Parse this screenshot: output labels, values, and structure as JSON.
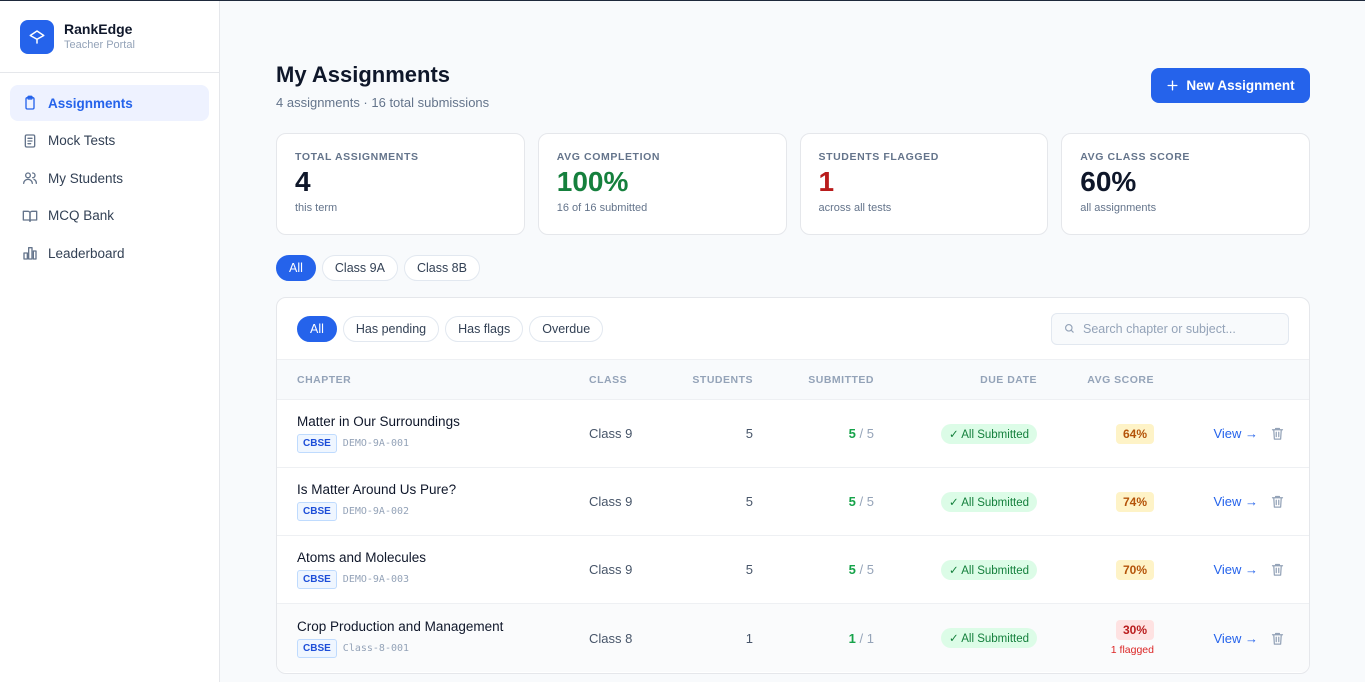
{
  "brand": {
    "name": "RankEdge",
    "subtitle": "Teacher Portal"
  },
  "sidebar": {
    "items": [
      {
        "label": "Assignments",
        "icon": "clipboard-icon",
        "active": true
      },
      {
        "label": "Mock Tests",
        "icon": "checklist-icon",
        "active": false
      },
      {
        "label": "My Students",
        "icon": "users-icon",
        "active": false
      },
      {
        "label": "MCQ Bank",
        "icon": "book-icon",
        "active": false
      },
      {
        "label": "Leaderboard",
        "icon": "bar-chart-icon",
        "active": false
      }
    ]
  },
  "header": {
    "title": "My Assignments",
    "subtitle": "4 assignments · 16 total submissions",
    "new_button": "New Assignment"
  },
  "stats": [
    {
      "label": "TOTAL ASSIGNMENTS",
      "value": "4",
      "note": "this term",
      "color": "#0f172a"
    },
    {
      "label": "AVG COMPLETION",
      "value": "100%",
      "note": "16 of 16 submitted",
      "color": "#15803d"
    },
    {
      "label": "STUDENTS FLAGGED",
      "value": "1",
      "note": "across all tests",
      "color": "#b91c1c"
    },
    {
      "label": "AVG CLASS SCORE",
      "value": "60%",
      "note": "all assignments",
      "color": "#0f172a"
    }
  ],
  "class_tabs": [
    "All",
    "Class 9A",
    "Class 8B"
  ],
  "filters": [
    "All",
    "Has pending",
    "Has flags",
    "Overdue"
  ],
  "search": {
    "placeholder": "Search chapter or subject..."
  },
  "columns": {
    "chapter": "CHAPTER",
    "class": "CLASS",
    "students": "STUDENTS",
    "submitted": "SUBMITTED",
    "due_date": "DUE DATE",
    "avg_score": "AVG SCORE"
  },
  "rows": [
    {
      "chapter": "Matter in Our Surroundings",
      "board": "CBSE",
      "code": "DEMO-9A-001",
      "class": "Class 9",
      "students": "5",
      "submitted": "5",
      "total": "/ 5",
      "status": "✓ All Submitted",
      "score": "64%",
      "flag": "",
      "view": "View →"
    },
    {
      "chapter": "Is Matter Around Us Pure?",
      "board": "CBSE",
      "code": "DEMO-9A-002",
      "class": "Class 9",
      "students": "5",
      "submitted": "5",
      "total": "/ 5",
      "status": "✓ All Submitted",
      "score": "74%",
      "flag": "",
      "view": "View →"
    },
    {
      "chapter": "Atoms and Molecules",
      "board": "CBSE",
      "code": "DEMO-9A-003",
      "class": "Class 9",
      "students": "5",
      "submitted": "5",
      "total": "/ 5",
      "status": "✓ All Submitted",
      "score": "70%",
      "flag": "",
      "view": "View →"
    },
    {
      "chapter": "Crop Production and Management",
      "board": "CBSE",
      "code": "Class-8-001",
      "class": "Class 8",
      "students": "1",
      "submitted": "1",
      "total": "/ 1",
      "status": "✓ All Submitted",
      "score": "30%",
      "flag": "1 flagged",
      "view": "View →"
    }
  ]
}
